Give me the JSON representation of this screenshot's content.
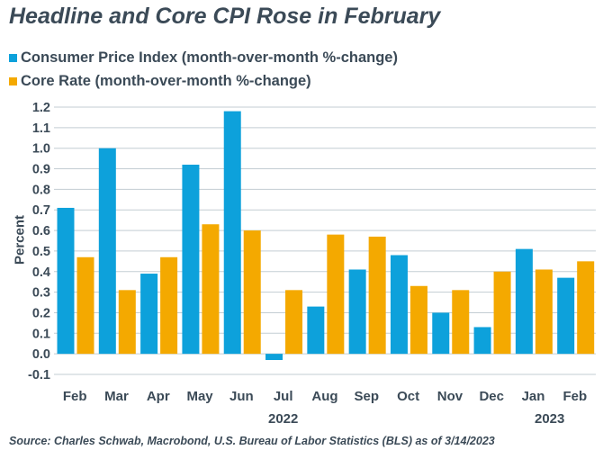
{
  "chart_data": {
    "type": "bar",
    "title": "Headline and Core CPI Rose in February",
    "ylabel": "Percent",
    "xlabel": "",
    "ylim": [
      -0.1,
      1.2
    ],
    "yticks": [
      "1.2",
      "1.1",
      "1.0",
      "0.9",
      "0.8",
      "0.7",
      "0.6",
      "0.5",
      "0.4",
      "0.3",
      "0.2",
      "0.1",
      "0.0",
      "-0.1"
    ],
    "categories": [
      "Feb",
      "Mar",
      "Apr",
      "May",
      "Jun",
      "Jul",
      "Aug",
      "Sep",
      "Oct",
      "Nov",
      "Dec",
      "Jan",
      "Feb"
    ],
    "year_labels": [
      "2022",
      "2023"
    ],
    "series": [
      {
        "name": "Consumer Price Index (month-over-month %-change)",
        "color": "#0da1db",
        "values": [
          0.71,
          1.0,
          0.39,
          0.92,
          1.18,
          -0.03,
          0.23,
          0.41,
          0.48,
          0.2,
          0.13,
          0.51,
          0.37
        ]
      },
      {
        "name": "Core Rate (month-over-month %-change)",
        "color": "#f4a900",
        "values": [
          0.47,
          0.31,
          0.47,
          0.63,
          0.6,
          0.31,
          0.58,
          0.57,
          0.33,
          0.31,
          0.4,
          0.41,
          0.45
        ]
      }
    ],
    "grid": true,
    "legend_position": "top-left"
  },
  "source": "Source: Charles Schwab, Macrobond, U.S. Bureau of Labor Statistics (BLS) as of 3/14/2023"
}
